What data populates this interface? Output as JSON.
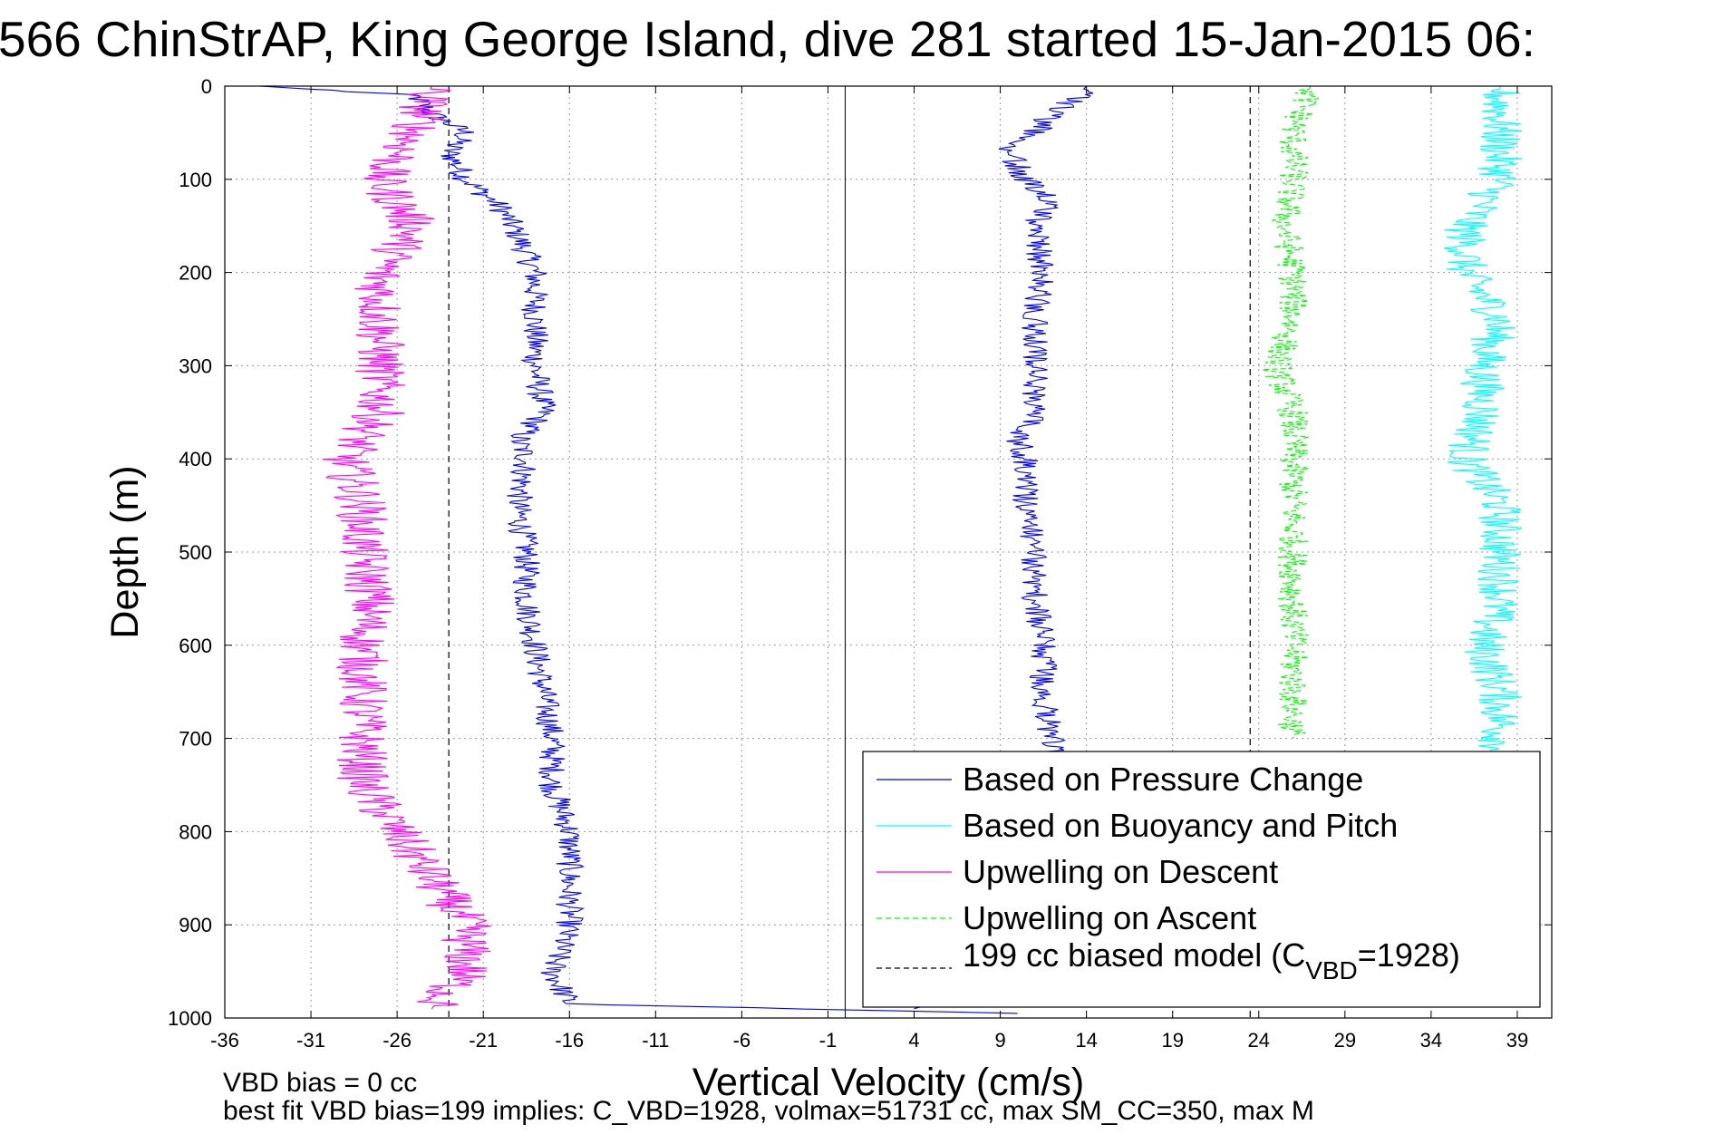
{
  "title": "566 ChinStrAP, King George Island, dive 281 started 15-Jan-2015 06:",
  "footer": {
    "line1": "VBD bias = 0 cc",
    "line2": "best fit VBD bias=199 implies: C_VBD=1928, volmax=51731 cc, max SM_CC=350, max M"
  },
  "chart_data": {
    "type": "line",
    "xlabel": "Vertical Velocity (cm/s)",
    "ylabel": "Depth (m)",
    "xlim": [
      -36,
      41
    ],
    "ylim": [
      1000,
      0
    ],
    "y_reversed": true,
    "xticks": [
      -36,
      -31,
      -26,
      -21,
      -16,
      -11,
      -6,
      -1,
      4,
      9,
      14,
      19,
      24,
      29,
      34,
      39
    ],
    "xtick_labels": [
      "-36",
      "-31",
      "-26",
      "-21",
      "-16",
      "-11",
      "-6",
      "-1",
      "4",
      "9",
      "14",
      "19",
      "24",
      "29",
      "34",
      "39"
    ],
    "yticks": [
      0,
      100,
      200,
      300,
      400,
      500,
      600,
      700,
      800,
      900,
      1000
    ],
    "ytick_labels": [
      "0",
      "100",
      "200",
      "300",
      "400",
      "500",
      "600",
      "700",
      "800",
      "900",
      "1000"
    ],
    "grid": true,
    "legend_position": "lower-right",
    "zero_line_x": 0,
    "model_lines_x": [
      -23,
      23.5
    ],
    "legend": {
      "entries": [
        "Based on Pressure Change",
        "Based on Buoyancy and Pitch",
        "Upwelling on Descent",
        "Upwelling on Ascent"
      ],
      "model_prefix": "199 cc biased model (C",
      "model_sub": "VBD",
      "model_suffix": "=1928)"
    },
    "colors": {
      "pressure": "#0000ff",
      "buoyancy": "#00ffff",
      "desc": "#ff00ff",
      "asc": "#00ff00",
      "model": "#000000"
    },
    "series": [
      {
        "name": "Based on Pressure Change (descent)",
        "color": "#0000ff",
        "depth": [
          0,
          10,
          30,
          50,
          70,
          100,
          130,
          160,
          200,
          250,
          300,
          350,
          380,
          400,
          450,
          500,
          550,
          600,
          650,
          700,
          750,
          800,
          850,
          900,
          950,
          985,
          995
        ],
        "velocity": [
          -34,
          -25,
          -24,
          -22,
          -23,
          -22,
          -20,
          -19,
          -18,
          -18,
          -18,
          -17.5,
          -19,
          -18.5,
          -19,
          -18.5,
          -18.5,
          -18,
          -17.5,
          -17,
          -17,
          -16,
          -16,
          -16,
          -17,
          -16,
          10
        ],
        "noise": 0.8
      },
      {
        "name": "Based on Pressure Change (ascent)",
        "color": "#0000ff",
        "depth": [
          990,
          950,
          900,
          850,
          800,
          750,
          700,
          650,
          600,
          550,
          500,
          450,
          400,
          380,
          350,
          300,
          250,
          200,
          150,
          120,
          100,
          70,
          50,
          30,
          10,
          0
        ],
        "velocity": [
          4,
          12,
          11.5,
          11.5,
          11.5,
          12,
          12,
          11.5,
          11.5,
          11,
          11,
          10.5,
          10.5,
          10,
          11,
          11,
          11,
          11.5,
          11,
          12,
          10.5,
          9.5,
          11,
          12,
          13.5,
          14
        ],
        "noise": 0.8
      },
      {
        "name": "Based on Buoyancy and Pitch",
        "color": "#00ffff",
        "depth": [
          0,
          50,
          100,
          150,
          200,
          250,
          300,
          350,
          400,
          450,
          500,
          550,
          600,
          650,
          700,
          750,
          800,
          810
        ],
        "velocity": [
          38,
          38,
          38,
          36,
          36,
          38,
          37,
          37,
          36,
          38,
          38,
          38,
          37,
          38,
          38,
          38,
          38,
          38
        ],
        "noise": 1.3
      },
      {
        "name": "Upwelling on Descent",
        "color": "#ff00ff",
        "depth": [
          0,
          50,
          100,
          150,
          200,
          250,
          300,
          350,
          400,
          450,
          500,
          550,
          600,
          650,
          700,
          750,
          800,
          850,
          900,
          950,
          990
        ],
        "velocity": [
          -24,
          -25,
          -27,
          -25,
          -27,
          -27,
          -27,
          -27,
          -29,
          -28,
          -28,
          -27.5,
          -28,
          -28,
          -28,
          -28,
          -26,
          -24,
          -22,
          -22,
          -24
        ],
        "noise": 1.5
      },
      {
        "name": "Upwelling on Ascent",
        "color": "#00ff00",
        "depth": [
          0,
          50,
          100,
          150,
          200,
          250,
          300,
          350,
          400,
          450,
          500,
          550,
          600,
          650,
          700
        ],
        "velocity": [
          27,
          26,
          26,
          25.5,
          26,
          26,
          25,
          26,
          26,
          26,
          26,
          26,
          26,
          26,
          26
        ],
        "noise": 0.9
      }
    ]
  }
}
